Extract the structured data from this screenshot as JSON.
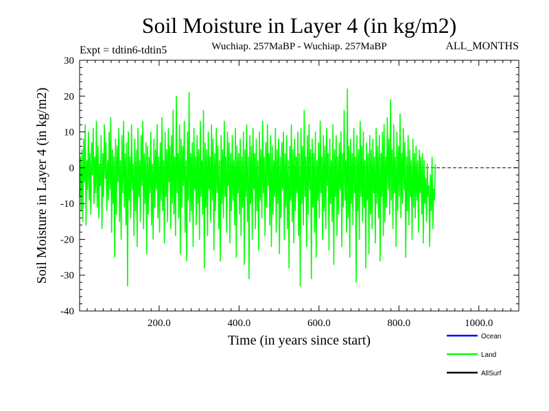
{
  "chart_data": {
    "type": "line",
    "title": "Soil Moisture in Layer 4 (in kg/m2)",
    "subtitle_left": "Expt = tdtin6-tdtin5",
    "subtitle_center": "Wuchiap. 257MaBP - Wuchiap. 257MaBP",
    "subtitle_right": "ALL_MONTHS",
    "xlabel": "Time (in years since start)",
    "ylabel": "Soil Moisture in Layer 4 (in kg/m2)",
    "xlim": [
      1,
      1100
    ],
    "ylim": [
      -40,
      30
    ],
    "xticks": [
      200,
      400,
      600,
      800,
      1000
    ],
    "xtick_labels": [
      "200.0",
      "400.0",
      "600.0",
      "800.0",
      "1000.0"
    ],
    "yticks": [
      -40,
      -30,
      -20,
      -10,
      0,
      10,
      20,
      30
    ],
    "ytick_labels": [
      "-40",
      "-30",
      "-20",
      "-10",
      "0",
      "10",
      "20",
      "30"
    ],
    "zero_line": 0,
    "series": [
      {
        "name": "Land",
        "color": "#00ff00",
        "x_start": 1,
        "x_step": 2,
        "values": [
          -8,
          3,
          -12,
          5,
          -15,
          8,
          -4,
          12,
          -16,
          2,
          -6,
          10,
          -9,
          4,
          -13,
          7,
          -2,
          11,
          -10,
          3,
          -7,
          13,
          -11,
          6,
          -14,
          1,
          -5,
          9,
          -17,
          4,
          -8,
          12,
          -3,
          7,
          -12,
          2,
          -9,
          10,
          -6,
          14,
          -18,
          5,
          -10,
          3,
          -25,
          8,
          -13,
          6,
          -4,
          11,
          -15,
          2,
          -20,
          9,
          -7,
          13,
          -11,
          4,
          -16,
          7,
          -33,
          10,
          -9,
          3,
          -14,
          12,
          -6,
          1,
          -19,
          8,
          -12,
          5,
          -22,
          11,
          -8,
          2,
          -15,
          9,
          -5,
          13,
          -17,
          4,
          -10,
          7,
          -24,
          6,
          -13,
          3,
          -7,
          10,
          -16,
          1,
          -20,
          8,
          -11,
          5,
          -6,
          12,
          -14,
          3,
          -18,
          7,
          -9,
          14,
          -12,
          2,
          -21,
          10,
          -8,
          5,
          -15,
          11,
          -4,
          6,
          -17,
          9,
          -10,
          16,
          -13,
          3,
          -19,
          20,
          -7,
          4,
          -14,
          12,
          -24,
          8,
          -11,
          6,
          -5,
          13,
          -18,
          2,
          -26,
          10,
          -9,
          21,
          -15,
          4,
          -12,
          7,
          -22,
          11,
          -6,
          3,
          -16,
          9,
          -10,
          5,
          -20,
          13,
          -8,
          2,
          -13,
          16,
          -28,
          7,
          -11,
          5,
          -19,
          10,
          -6,
          3,
          -15,
          12,
          -9,
          8,
          -23,
          4,
          -12,
          11,
          -7,
          6,
          -17,
          2,
          -26,
          9,
          -10,
          5,
          -14,
          13,
          -8,
          3,
          -18,
          10,
          -5,
          7,
          -21,
          4,
          -12,
          9,
          -9,
          2,
          -16,
          11,
          -25,
          6,
          -7,
          4,
          -13,
          8,
          -19,
          3,
          -11,
          10,
          -27,
          5,
          -8,
          12,
          -15,
          3,
          -31,
          9,
          -10,
          6,
          -20,
          11,
          -6,
          4,
          -17,
          8,
          -12,
          2,
          -23,
          10,
          -9,
          5,
          -14,
          13,
          -7,
          3,
          -19,
          7,
          -11,
          12,
          -5,
          4,
          -16,
          9,
          -22,
          6,
          -13,
          2,
          -8,
          11,
          -18,
          5,
          -10,
          8,
          -24,
          3,
          -14,
          7,
          -6,
          10,
          -20,
          4,
          -11,
          9,
          -17,
          2,
          -28,
          6,
          -9,
          12,
          -15,
          5,
          -21,
          8,
          -12,
          3,
          -7,
          10,
          -19,
          4,
          -33,
          11,
          -10,
          6,
          -16,
          16,
          -8,
          3,
          -22,
          9,
          -13,
          12,
          -6,
          5,
          -31,
          8,
          -11,
          4,
          -18,
          10,
          -25,
          2,
          -9,
          7,
          -14,
          13,
          -7,
          3,
          -20,
          9,
          -12,
          6,
          -17,
          11,
          -5,
          4,
          -23,
          8,
          -10,
          2,
          -15,
          12,
          -27,
          5,
          -8,
          9,
          -19,
          3,
          -13,
          7,
          -6,
          10,
          -22,
          4,
          -11,
          16,
          -9,
          2,
          -18,
          22,
          -14,
          6,
          -25,
          8,
          -10,
          4,
          -16,
          11,
          -7,
          3,
          -32,
          9,
          -12,
          5,
          -20,
          13,
          -8,
          6,
          -15,
          10,
          -11,
          2,
          -28,
          7,
          -9,
          4,
          -24,
          9,
          -13,
          5,
          -17,
          8,
          -7,
          3,
          -21,
          11,
          -10,
          6,
          -14,
          9,
          -26,
          4,
          -8,
          10,
          -19,
          12,
          -15,
          3,
          -11,
          14,
          -6,
          8,
          -13,
          19,
          -9,
          5,
          -17,
          12,
          -7,
          3,
          -22,
          10,
          -12,
          6,
          -8,
          15,
          -14,
          4,
          -10,
          11,
          -6,
          7,
          -25,
          3,
          -12,
          9,
          -16,
          5,
          -8,
          2,
          -20,
          8,
          -11,
          4,
          -14,
          6,
          -9,
          2,
          -18,
          5,
          -7,
          3,
          -13,
          4,
          -21,
          2,
          -10,
          -3,
          -15,
          1,
          -8,
          -5,
          -22,
          -2,
          -12,
          3,
          -17,
          -6,
          -9,
          1
        ]
      }
    ],
    "legend": {
      "placement": "bottom-right",
      "entries": [
        {
          "name": "Ocean",
          "color": "#0000ff"
        },
        {
          "name": "Land",
          "color": "#00ff00"
        },
        {
          "name": "AllSurf",
          "color": "#000000"
        }
      ]
    }
  }
}
